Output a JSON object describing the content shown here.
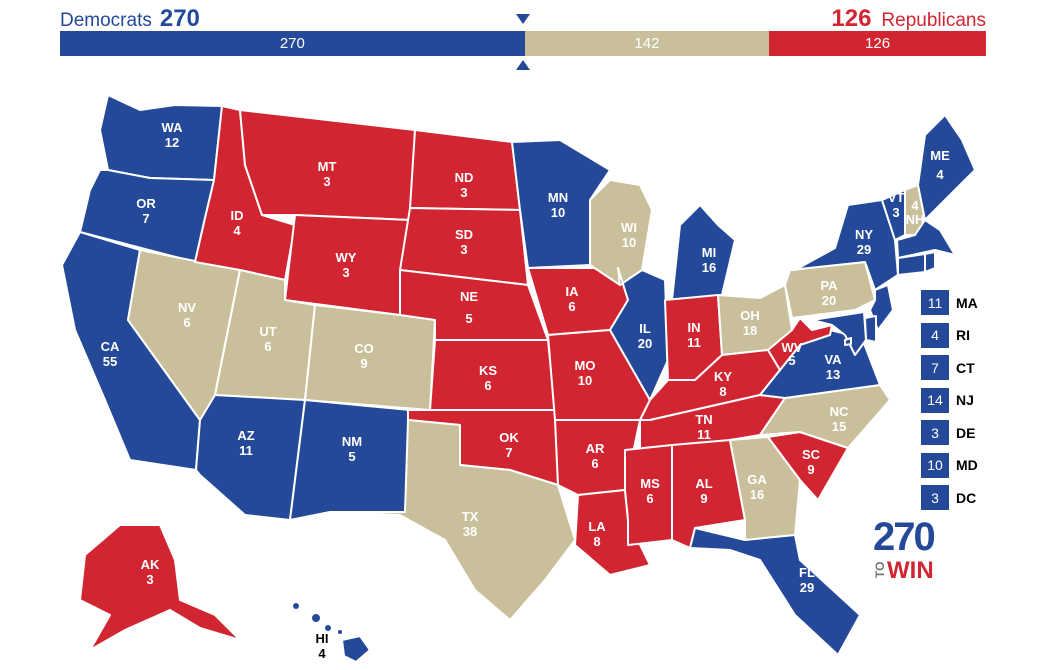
{
  "header": {
    "dem_label": "Democrats",
    "dem_total": "270",
    "rep_total": "126",
    "rep_label": "Republicans"
  },
  "bar": {
    "dem": "270",
    "tossup": "142",
    "rep": "126",
    "total": 538
  },
  "colors": {
    "dem": "#244999",
    "rep": "#d22532",
    "tossup": "#c9bf9a"
  },
  "states": {
    "WA": {
      "abbr": "WA",
      "ev": "12",
      "party": "dem"
    },
    "OR": {
      "abbr": "OR",
      "ev": "7",
      "party": "dem"
    },
    "CA": {
      "abbr": "CA",
      "ev": "55",
      "party": "dem"
    },
    "NV": {
      "abbr": "NV",
      "ev": "6",
      "party": "tossup"
    },
    "ID": {
      "abbr": "ID",
      "ev": "4",
      "party": "rep"
    },
    "MT": {
      "abbr": "MT",
      "ev": "3",
      "party": "rep"
    },
    "WY": {
      "abbr": "WY",
      "ev": "3",
      "party": "rep"
    },
    "UT": {
      "abbr": "UT",
      "ev": "6",
      "party": "tossup"
    },
    "CO": {
      "abbr": "CO",
      "ev": "9",
      "party": "tossup"
    },
    "AZ": {
      "abbr": "AZ",
      "ev": "11",
      "party": "dem"
    },
    "NM": {
      "abbr": "NM",
      "ev": "5",
      "party": "dem"
    },
    "ND": {
      "abbr": "ND",
      "ev": "3",
      "party": "rep"
    },
    "SD": {
      "abbr": "SD",
      "ev": "3",
      "party": "rep"
    },
    "NE": {
      "abbr": "NE",
      "ev": "5",
      "party": "rep"
    },
    "KS": {
      "abbr": "KS",
      "ev": "6",
      "party": "rep"
    },
    "OK": {
      "abbr": "OK",
      "ev": "7",
      "party": "rep"
    },
    "TX": {
      "abbr": "TX",
      "ev": "38",
      "party": "tossup"
    },
    "MN": {
      "abbr": "MN",
      "ev": "10",
      "party": "dem"
    },
    "IA": {
      "abbr": "IA",
      "ev": "6",
      "party": "rep"
    },
    "MO": {
      "abbr": "MO",
      "ev": "10",
      "party": "rep"
    },
    "AR": {
      "abbr": "AR",
      "ev": "6",
      "party": "rep"
    },
    "LA": {
      "abbr": "LA",
      "ev": "8",
      "party": "rep"
    },
    "WI": {
      "abbr": "WI",
      "ev": "10",
      "party": "tossup"
    },
    "IL": {
      "abbr": "IL",
      "ev": "20",
      "party": "dem"
    },
    "MI": {
      "abbr": "MI",
      "ev": "16",
      "party": "dem"
    },
    "IN": {
      "abbr": "IN",
      "ev": "11",
      "party": "rep"
    },
    "OH": {
      "abbr": "OH",
      "ev": "18",
      "party": "tossup"
    },
    "KY": {
      "abbr": "KY",
      "ev": "8",
      "party": "rep"
    },
    "TN": {
      "abbr": "TN",
      "ev": "11",
      "party": "rep"
    },
    "MS": {
      "abbr": "MS",
      "ev": "6",
      "party": "rep"
    },
    "AL": {
      "abbr": "AL",
      "ev": "9",
      "party": "rep"
    },
    "GA": {
      "abbr": "GA",
      "ev": "16",
      "party": "tossup"
    },
    "FL": {
      "abbr": "FL",
      "ev": "29",
      "party": "dem"
    },
    "SC": {
      "abbr": "SC",
      "ev": "9",
      "party": "rep"
    },
    "NC": {
      "abbr": "NC",
      "ev": "15",
      "party": "tossup"
    },
    "VA": {
      "abbr": "VA",
      "ev": "13",
      "party": "dem"
    },
    "WV": {
      "abbr": "WV",
      "ev": "5",
      "party": "rep"
    },
    "PA": {
      "abbr": "PA",
      "ev": "20",
      "party": "tossup"
    },
    "NY": {
      "abbr": "NY",
      "ev": "29",
      "party": "dem"
    },
    "VT": {
      "abbr": "VT",
      "ev": "3",
      "party": "dem"
    },
    "NH": {
      "abbr": "NH",
      "ev": "4",
      "party": "tossup"
    },
    "ME": {
      "abbr": "ME",
      "ev": "4",
      "party": "dem"
    },
    "AK": {
      "abbr": "AK",
      "ev": "3",
      "party": "rep"
    },
    "HI": {
      "abbr": "HI",
      "ev": "4",
      "party": "dem"
    }
  },
  "small_states": [
    {
      "abbr": "MA",
      "ev": "11",
      "party": "dem"
    },
    {
      "abbr": "RI",
      "ev": "4",
      "party": "dem"
    },
    {
      "abbr": "CT",
      "ev": "7",
      "party": "dem"
    },
    {
      "abbr": "NJ",
      "ev": "14",
      "party": "dem"
    },
    {
      "abbr": "DE",
      "ev": "3",
      "party": "dem"
    },
    {
      "abbr": "MD",
      "ev": "10",
      "party": "dem"
    },
    {
      "abbr": "DC",
      "ev": "3",
      "party": "dem"
    }
  ],
  "logo": {
    "number": "270",
    "to": "TO",
    "win": "WIN"
  }
}
